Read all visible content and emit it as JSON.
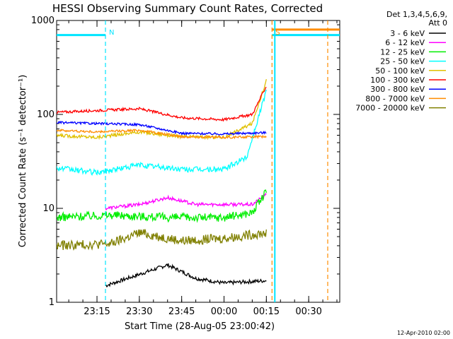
{
  "chart_data": {
    "type": "line",
    "title": "HESSI Observing Summary Count Rates, Corrected",
    "xlabel": "Start Time (28-Aug-05 23:00:42)",
    "ylabel": "Corrected Count Rate (s⁻¹ detector⁻¹)",
    "y_scale": "log",
    "ylim": [
      1,
      1000
    ],
    "xlim": [
      "23:00:42",
      "00:41"
    ],
    "x_ticks": [
      "23:15",
      "23:30",
      "23:45",
      "00:00",
      "00:15",
      "00:30"
    ],
    "y_ticks": [
      "1",
      "10",
      "100",
      "1000"
    ],
    "grid": false,
    "legend_header": [
      "Det 1,3,4,5,6,9,",
      "Att 0"
    ],
    "footer": "12-Apr-2010 02:00",
    "annotations": [
      {
        "label": "N",
        "color": "#00e5ff",
        "time": "23:18"
      },
      {
        "label": "S",
        "color": "#ff8c00",
        "time": "00:17"
      }
    ],
    "series": [
      {
        "name": "3 - 6 keV",
        "color": "#000000",
        "x": [
          "23:18",
          "23:40",
          "23:50",
          "00:00",
          "00:15"
        ],
        "values": [
          1.5,
          2.5,
          1.8,
          1.6,
          1.7
        ]
      },
      {
        "name": "6 - 12 keV",
        "color": "#ff00ff",
        "x": [
          "23:18",
          "23:30",
          "23:40",
          "23:50",
          "00:00",
          "00:10",
          "00:15"
        ],
        "values": [
          10,
          11,
          13,
          11,
          11,
          11,
          14
        ]
      },
      {
        "name": "12 - 25 keV",
        "color": "#00ee00",
        "x": [
          "23:00",
          "23:20",
          "23:40",
          "00:00",
          "00:10",
          "00:15"
        ],
        "values": [
          8,
          8.5,
          8,
          8,
          9,
          15
        ]
      },
      {
        "name": "25 - 50 keV",
        "color": "#00ffff",
        "x": [
          "23:00",
          "23:15",
          "23:30",
          "23:45",
          "00:00",
          "00:08",
          "00:15"
        ],
        "values": [
          27,
          24,
          29,
          26,
          26,
          35,
          180
        ]
      },
      {
        "name": "50 - 100 keV",
        "color": "#e0c000",
        "x": [
          "23:00",
          "23:15",
          "23:30",
          "23:45",
          "00:00",
          "00:10",
          "00:15"
        ],
        "values": [
          60,
          57,
          65,
          58,
          57,
          80,
          230
        ]
      },
      {
        "name": "100 - 300 keV",
        "color": "#ff0000",
        "x": [
          "23:00",
          "23:15",
          "23:30",
          "23:45",
          "00:00",
          "00:10",
          "00:15"
        ],
        "values": [
          105,
          110,
          115,
          92,
          88,
          100,
          200
        ]
      },
      {
        "name": "300 - 800 keV",
        "color": "#0000ff",
        "x": [
          "23:00",
          "23:15",
          "23:30",
          "23:45",
          "00:00",
          "00:15"
        ],
        "values": [
          82,
          80,
          78,
          63,
          62,
          64
        ]
      },
      {
        "name": "800 - 7000 keV",
        "color": "#ff8c00",
        "x": [
          "23:00",
          "23:15",
          "23:30",
          "23:45",
          "00:00",
          "00:15"
        ],
        "values": [
          68,
          65,
          68,
          58,
          57,
          58
        ]
      },
      {
        "name": "7000 - 20000 keV",
        "color": "#808000",
        "x": [
          "23:00",
          "23:20",
          "23:30",
          "23:45",
          "00:00",
          "00:15"
        ],
        "values": [
          4,
          4.2,
          5.5,
          4.5,
          4.8,
          5.5
        ]
      }
    ],
    "flags": [
      {
        "label": "N",
        "color": "#00e5ff",
        "x": [
          "23:00",
          "23:18"
        ],
        "values": [
          700,
          700
        ]
      },
      {
        "label": "S",
        "color": "#ff8c00",
        "x": [
          "00:17",
          "00:41"
        ],
        "values": [
          800,
          800
        ]
      }
    ]
  }
}
